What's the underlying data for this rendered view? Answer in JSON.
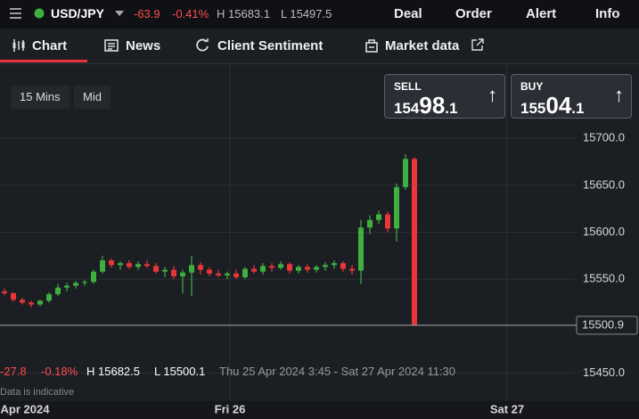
{
  "header": {
    "symbol": "USD/JPY",
    "change": "-63.9",
    "change_pct": "-0.41%",
    "high": "H 15683.1",
    "low": "L 15497.5",
    "menu": [
      "Deal",
      "Order",
      "Alert",
      "Info"
    ]
  },
  "tabs": [
    "Chart",
    "News",
    "Client Sentiment",
    "Market data"
  ],
  "controls": [
    "15 Mins",
    "Mid"
  ],
  "sell": {
    "label": "SELL",
    "price_small": "154",
    "price_big": "98",
    "price_tail": ".1"
  },
  "buy": {
    "label": "BUY",
    "price_small": "155",
    "price_big": "04",
    "price_tail": ".1"
  },
  "chart_data": {
    "type": "candlestick",
    "x": [
      0,
      1,
      2,
      3,
      4,
      5,
      6,
      7,
      8,
      9,
      10,
      11,
      12,
      13,
      14,
      15,
      16,
      17,
      18,
      19,
      20,
      21,
      22,
      23,
      24,
      25,
      26,
      27,
      28,
      29,
      30,
      31,
      32,
      33,
      34,
      35,
      36,
      37,
      38,
      39,
      40,
      41,
      42,
      43,
      44,
      45,
      46
    ],
    "open": [
      15537,
      15535,
      15528,
      15525,
      15523,
      15527,
      15534,
      15541,
      15543,
      15546,
      15547,
      15558,
      15570,
      15565,
      15567,
      15563,
      15566,
      15564,
      15558,
      15560,
      15553,
      15557,
      15565,
      15560,
      15556,
      15554,
      15556,
      15552,
      15561,
      15558,
      15564,
      15562,
      15566,
      15559,
      15563,
      15560,
      15563,
      15565,
      15567,
      15561,
      15559,
      15605,
      15613,
      15619,
      15604,
      15648,
      15678
    ],
    "high": [
      15540,
      15536,
      15530,
      15527,
      15528,
      15536,
      15545,
      15546,
      15548,
      15549,
      15560,
      15575,
      15572,
      15569,
      15570,
      15569,
      15570,
      15567,
      15563,
      15564,
      15560,
      15575,
      15568,
      15563,
      15560,
      15558,
      15560,
      15563,
      15565,
      15567,
      15567,
      15569,
      15568,
      15565,
      15566,
      15565,
      15568,
      15570,
      15569,
      15565,
      15613,
      15618,
      15623,
      15622,
      15652,
      15683,
      15680
    ],
    "low": [
      15533,
      15526,
      15523,
      15520,
      15521,
      15525,
      15532,
      15537,
      15540,
      15543,
      15545,
      15556,
      15562,
      15560,
      15561,
      15560,
      15562,
      15556,
      15552,
      15550,
      15535,
      15532,
      15555,
      15553,
      15552,
      15550,
      15550,
      15550,
      15556,
      15555,
      15558,
      15560,
      15556,
      15556,
      15557,
      15557,
      15559,
      15561,
      15558,
      15555,
      15545,
      15598,
      15609,
      15600,
      15590,
      15645,
      15500
    ],
    "close": [
      15535,
      15528,
      15525,
      15523,
      15527,
      15534,
      15541,
      15543,
      15546,
      15547,
      15558,
      15570,
      15565,
      15567,
      15563,
      15566,
      15564,
      15558,
      15560,
      15553,
      15557,
      15565,
      15560,
      15556,
      15554,
      15556,
      15552,
      15561,
      15558,
      15564,
      15562,
      15566,
      15559,
      15563,
      15560,
      15563,
      15565,
      15567,
      15561,
      15559,
      15605,
      15613,
      15619,
      15604,
      15648,
      15678,
      15501
    ],
    "up_color": "#3faf3f",
    "down_color": "#e8363a",
    "xlim": [
      -0.5,
      71.2
    ],
    "xticks": [
      {
        "value": 2.3,
        "label": "Apr 2024"
      },
      {
        "value": 25.3,
        "label": "Fri 26"
      },
      {
        "value": 56.4,
        "label": "Sat 27"
      }
    ],
    "ylim": [
      15420,
      15779
    ],
    "yticks": [
      {
        "value": 15450,
        "label": "15450.0"
      },
      {
        "value": 15550,
        "label": "15550.0"
      },
      {
        "value": 15600,
        "label": "15600.0"
      },
      {
        "value": 15650,
        "label": "15650.0"
      },
      {
        "value": 15700,
        "label": "15700.0"
      }
    ],
    "last_price": 15500.9,
    "grid": true
  },
  "footer": {
    "change": "-27.8",
    "change_pct": "-0.18%",
    "high": "H 15682.5",
    "low": "L 15500.1",
    "range": "Thu 25 Apr 2024 3:45 - Sat 27 Apr 2024 11:30",
    "note": "Data is indicative"
  }
}
